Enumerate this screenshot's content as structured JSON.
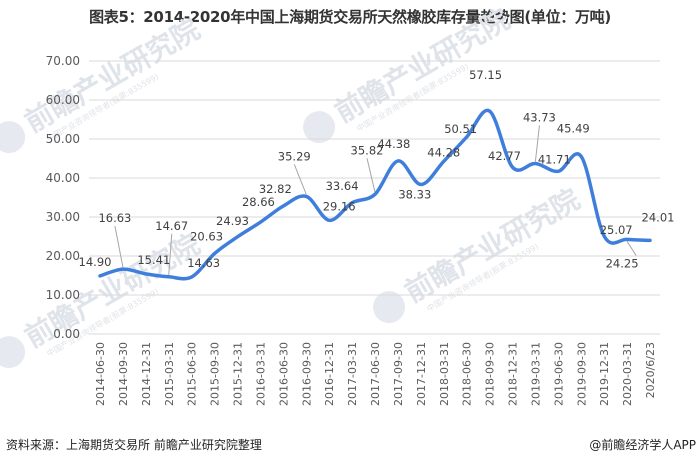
{
  "title": "图表5：2014-2020年中国上海期货交易所天然橡胶库存量趋势图(单位：万吨)",
  "footer": {
    "source": "资料来源：上海期货交易所 前瞻产业研究院整理",
    "brand": "@前瞻经济学人APP"
  },
  "watermark": {
    "text": "前瞻产业研究院",
    "subtext": "中国产业咨询领导者(股票:835599)"
  },
  "colors": {
    "line": "#3F7FDB",
    "grid": "#D9D9D9",
    "leader": "#A6A6A6"
  },
  "chart_data": {
    "type": "line",
    "title": "图表5：2014-2020年中国上海期货交易所天然橡胶库存量趋势图(单位：万吨)",
    "xlabel": "",
    "ylabel": "万吨",
    "ylim": [
      0,
      70
    ],
    "yticks": [
      "0.00",
      "10.00",
      "20.00",
      "30.00",
      "40.00",
      "50.00",
      "60.00",
      "70.00"
    ],
    "grid": true,
    "legend": "none",
    "smooth": true,
    "categories": [
      "2014-06-30",
      "2014-09-30",
      "2014-12-31",
      "2015-03-31",
      "2015-06-30",
      "2015-09-30",
      "2015-12-31",
      "2016-03-31",
      "2016-06-30",
      "2016-09-30",
      "2016-12-31",
      "2017-03-31",
      "2017-06-30",
      "2017-09-30",
      "2017-12-31",
      "2018-03-31",
      "2018-06-30",
      "2018-09-30",
      "2018-12-31",
      "2019-03-31",
      "2019-06-30",
      "2019-09-30",
      "2019-12-31",
      "2020-03-31",
      "2020/6/23"
    ],
    "series": [
      {
        "name": "天然橡胶库存量",
        "values": [
          14.9,
          16.63,
          15.41,
          14.67,
          14.63,
          20.63,
          24.93,
          28.66,
          32.82,
          35.29,
          29.16,
          33.64,
          35.82,
          44.38,
          38.33,
          44.28,
          50.51,
          57.15,
          42.77,
          43.73,
          41.71,
          45.49,
          25.07,
          24.25,
          24.01
        ]
      }
    ],
    "data_labels": [
      "14.90",
      "16.63",
      "15.41",
      "14.67",
      "14.63",
      "20.63",
      "24.93",
      "28.66",
      "32.82",
      "35.29",
      "29.16",
      "33.64",
      "35.82",
      "44.38",
      "38.33",
      "44.28",
      "50.51",
      "57.15",
      "42.77",
      "43.73",
      "41.71",
      "45.49",
      "25.07",
      "24.25",
      "24.01"
    ]
  }
}
